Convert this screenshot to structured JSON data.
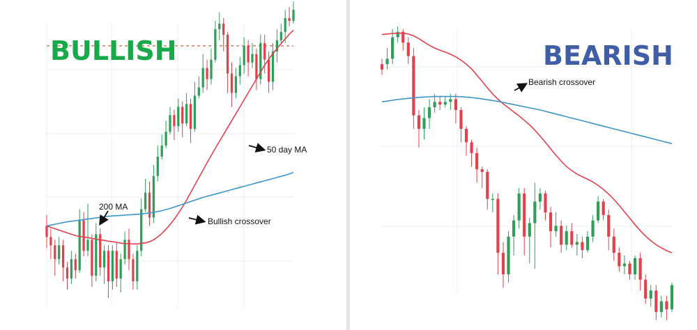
{
  "chart_data": [
    {
      "type": "candlestick",
      "title": "BULLISH",
      "title_color": "#18a94a",
      "bull_color": "#2f9e58",
      "bear_color": "#e0414c",
      "ma_colors": {
        "fast": "#e0414c",
        "slow": "#3d94c9"
      },
      "grid": true,
      "horizontal_reference": {
        "style": "dashed",
        "color": "#e0734c",
        "y": 91
      },
      "annotations": [
        {
          "text": "50 day MA"
        },
        {
          "text": "200 MA"
        },
        {
          "text": "Bullish crossover"
        }
      ],
      "ylim": [
        0,
        100
      ],
      "candles": [
        [
          26,
          22,
          30,
          18
        ],
        [
          22,
          19,
          25,
          14
        ],
        [
          19,
          14,
          21,
          8
        ],
        [
          14,
          19,
          22,
          12
        ],
        [
          19,
          11,
          21,
          6
        ],
        [
          11,
          7,
          13,
          3
        ],
        [
          7,
          14,
          17,
          5
        ],
        [
          14,
          10,
          16,
          7
        ],
        [
          10,
          28,
          32,
          9
        ],
        [
          28,
          17,
          31,
          15
        ],
        [
          17,
          21,
          34,
          15
        ],
        [
          21,
          8,
          23,
          4
        ],
        [
          8,
          23,
          27,
          6
        ],
        [
          23,
          11,
          25,
          8
        ],
        [
          11,
          17,
          19,
          5
        ],
        [
          17,
          6,
          19,
          0
        ],
        [
          6,
          17,
          19,
          3
        ],
        [
          17,
          7,
          20,
          4
        ],
        [
          7,
          14,
          16,
          2
        ],
        [
          14,
          21,
          24,
          12
        ],
        [
          21,
          14,
          25,
          10
        ],
        [
          14,
          6,
          16,
          3
        ],
        [
          6,
          17,
          19,
          3
        ],
        [
          17,
          32,
          36,
          15
        ],
        [
          32,
          38,
          43,
          31
        ],
        [
          38,
          29,
          42,
          26
        ],
        [
          29,
          44,
          48,
          27
        ],
        [
          44,
          51,
          55,
          42
        ],
        [
          51,
          55,
          59,
          50
        ],
        [
          55,
          60,
          64,
          54
        ],
        [
          60,
          66,
          69,
          59
        ],
        [
          66,
          62,
          68,
          57
        ],
        [
          62,
          69,
          72,
          60
        ],
        [
          69,
          63,
          71,
          58
        ],
        [
          63,
          70,
          74,
          62
        ],
        [
          70,
          61,
          72,
          56
        ],
        [
          61,
          73,
          78,
          60
        ],
        [
          73,
          76,
          80,
          72
        ],
        [
          76,
          83,
          88,
          74
        ],
        [
          83,
          79,
          86,
          75
        ],
        [
          79,
          86,
          90,
          77
        ],
        [
          86,
          97,
          100,
          85
        ],
        [
          97,
          99,
          103,
          93
        ],
        [
          99,
          95,
          101,
          89
        ],
        [
          95,
          81,
          96,
          74
        ],
        [
          81,
          74,
          85,
          69
        ],
        [
          74,
          80,
          83,
          72
        ],
        [
          80,
          84,
          87,
          77
        ],
        [
          84,
          91,
          94,
          81
        ],
        [
          91,
          85,
          93,
          80
        ],
        [
          85,
          88,
          92,
          83
        ],
        [
          88,
          79,
          90,
          75
        ],
        [
          79,
          92,
          95,
          77
        ],
        [
          92,
          86,
          95,
          81
        ],
        [
          86,
          78,
          89,
          74
        ],
        [
          78,
          89,
          92,
          75
        ],
        [
          89,
          93,
          97,
          85
        ],
        [
          93,
          96,
          99,
          92
        ],
        [
          96,
          101,
          104,
          92
        ],
        [
          101,
          100,
          105,
          98
        ],
        [
          100,
          104,
          107,
          99
        ]
      ],
      "series": [
        {
          "values": [
            26,
            25.5,
            25,
            24.5,
            24,
            23.5,
            23,
            22.5,
            22.2,
            22,
            21.8,
            21.5,
            21.2,
            21,
            20.8,
            20.5,
            20.3,
            20.1,
            19.8,
            19.6,
            19.6,
            19.5,
            19.5,
            19.7,
            19.9,
            20.3,
            21,
            22,
            23.3,
            24.8,
            26.5,
            28.4,
            30.5,
            32.8,
            35.3,
            38,
            40.7,
            43.4,
            46.1,
            48.8,
            51.4,
            54,
            56.5,
            59,
            61.5,
            64,
            66.5,
            69,
            71.5,
            74,
            76.5,
            79,
            81.5,
            84,
            86.2,
            88.2,
            90,
            91.8,
            93.5,
            95.2,
            96.6
          ]
        },
        {
          "values": [
            26,
            26.3,
            26.6,
            26.9,
            27.2,
            27.5,
            27.7,
            27.9,
            28.1,
            28.3,
            28.5,
            28.7,
            28.9,
            29.1,
            29.3,
            29.5,
            29.6,
            29.7,
            29.8,
            29.9,
            30,
            30.1,
            30.2,
            30.3,
            30.5,
            30.7,
            30.9,
            31.2,
            31.5,
            31.9,
            32.3,
            32.8,
            33.3,
            33.8,
            34.3,
            34.8,
            35.3,
            35.8,
            36.3,
            36.7,
            37.1,
            37.5,
            37.9,
            38.3,
            38.7,
            39.1,
            39.5,
            39.9,
            40.3,
            40.7,
            41.1,
            41.5,
            41.9,
            42.3,
            42.7,
            43.1,
            43.5,
            43.9,
            44.3,
            44.8,
            45.3
          ]
        }
      ]
    },
    {
      "type": "candlestick",
      "title": "BEARISH",
      "title_color": "#3f5ea6",
      "bull_color": "#2f9e58",
      "bear_color": "#e0414c",
      "ma_colors": {
        "fast": "#e0414c",
        "slow": "#3d94c9"
      },
      "grid": true,
      "annotations": [
        {
          "text": "Bearish crossover"
        }
      ],
      "ylim": [
        0,
        100
      ],
      "candles": [
        [
          86,
          84,
          88,
          82
        ],
        [
          86,
          88,
          92,
          84
        ],
        [
          88,
          96,
          99,
          86
        ],
        [
          96,
          98,
          100,
          94
        ],
        [
          98,
          94,
          99,
          91
        ],
        [
          94,
          89,
          96,
          86
        ],
        [
          89,
          67,
          92,
          62
        ],
        [
          67,
          62,
          69,
          55
        ],
        [
          62,
          66,
          70,
          58
        ],
        [
          66,
          70,
          73,
          62
        ],
        [
          70,
          72,
          75,
          68
        ],
        [
          72,
          71,
          74,
          69
        ],
        [
          71,
          72,
          74,
          70
        ],
        [
          72,
          73,
          75,
          69
        ],
        [
          73,
          69,
          75,
          64
        ],
        [
          69,
          62,
          70,
          57
        ],
        [
          62,
          57,
          63,
          52
        ],
        [
          57,
          53,
          58,
          48
        ],
        [
          53,
          47,
          55,
          42
        ],
        [
          47,
          46,
          48,
          40
        ],
        [
          46,
          36,
          47,
          32
        ],
        [
          36,
          36,
          38,
          31
        ],
        [
          36,
          16,
          38,
          8
        ],
        [
          16,
          8,
          20,
          3
        ],
        [
          8,
          22,
          24,
          5
        ],
        [
          22,
          28,
          30,
          15
        ],
        [
          28,
          38,
          40,
          25
        ],
        [
          38,
          22,
          40,
          15
        ],
        [
          22,
          27,
          29,
          12
        ],
        [
          27,
          35,
          42,
          10
        ],
        [
          35,
          38,
          40,
          32
        ],
        [
          38,
          31,
          39,
          28
        ],
        [
          31,
          24,
          33,
          18
        ],
        [
          24,
          26,
          31,
          22
        ],
        [
          26,
          19,
          28,
          16
        ],
        [
          19,
          24,
          26,
          17
        ],
        [
          24,
          19,
          27,
          18
        ],
        [
          19,
          20,
          23,
          15
        ],
        [
          20,
          17,
          22,
          14
        ],
        [
          17,
          22,
          24,
          16
        ],
        [
          22,
          28,
          30,
          20
        ],
        [
          28,
          35,
          37,
          27
        ],
        [
          35,
          30,
          36,
          28
        ],
        [
          30,
          22,
          32,
          17
        ],
        [
          22,
          16,
          25,
          13
        ],
        [
          16,
          11,
          18,
          9
        ],
        [
          11,
          12,
          15,
          8
        ],
        [
          12,
          8,
          13,
          6
        ],
        [
          8,
          14,
          15,
          6
        ],
        [
          14,
          6,
          16,
          2
        ],
        [
          6,
          -1,
          8,
          -3
        ],
        [
          -1,
          2,
          4,
          -4
        ],
        [
          2,
          -6,
          4,
          -9
        ],
        [
          -6,
          -2,
          0,
          -8
        ],
        [
          -2,
          -5,
          0,
          -9
        ],
        [
          -5,
          4,
          5,
          -6
        ]
      ],
      "series": [
        {
          "values": [
            97,
            97.2,
            97.4,
            97.5,
            97.5,
            97.2,
            96.5,
            95.5,
            94.2,
            93,
            92,
            91.2,
            90.5,
            89.7,
            88.7,
            87.5,
            86,
            84.2,
            82,
            79.6,
            77.2,
            75,
            73,
            71.3,
            69.8,
            68.3,
            66.8,
            65.2,
            63.5,
            61.5,
            59.3,
            57,
            54.6,
            52.2,
            50,
            48,
            46.5,
            45.2,
            44.2,
            43.3,
            42.3,
            41,
            39.5,
            37.8,
            35.8,
            33.6,
            31.2,
            28.8,
            26.4,
            24.2,
            22.2,
            20.5,
            19,
            17.8,
            16.8,
            16
          ]
        },
        {
          "values": [
            72,
            72.3,
            72.6,
            72.9,
            73.1,
            73.3,
            73.5,
            73.7,
            73.8,
            73.9,
            74,
            74,
            74,
            74,
            74,
            73.9,
            73.8,
            73.6,
            73.4,
            73.1,
            72.8,
            72.5,
            72.2,
            71.8,
            71.4,
            71,
            70.6,
            70.2,
            69.8,
            69.4,
            69,
            68.5,
            68,
            67.5,
            67,
            66.5,
            66,
            65.5,
            65,
            64.5,
            64,
            63.5,
            63,
            62.5,
            62,
            61.5,
            61,
            60.5,
            60,
            59.5,
            59,
            58.5,
            58,
            57.5,
            57,
            56.5
          ]
        }
      ]
    }
  ]
}
